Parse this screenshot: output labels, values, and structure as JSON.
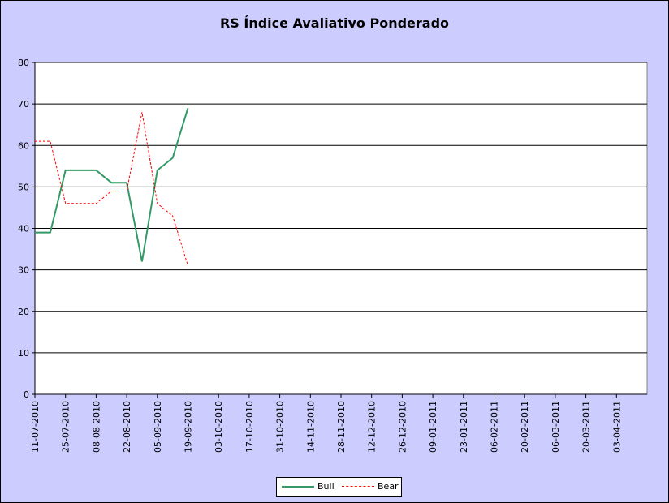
{
  "chart_data": {
    "type": "line",
    "title": "RS Índice Avaliativo Ponderado",
    "xlabel": "",
    "ylabel": "",
    "ylim": [
      0,
      80
    ],
    "y_ticks": [
      "0",
      "10",
      "20",
      "30",
      "40",
      "50",
      "60",
      "70",
      "80"
    ],
    "x_tick_labels": [
      "11-07-2010",
      "25-07-2010",
      "08-08-2010",
      "22-08-2010",
      "05-09-2010",
      "19-09-2010",
      "03-10-2010",
      "17-10-2010",
      "31-10-2010",
      "14-11-2010",
      "28-11-2010",
      "12-12-2010",
      "26-12-2010",
      "09-01-2011",
      "23-01-2011",
      "06-02-2011",
      "20-02-2011",
      "06-03-2011",
      "20-03-2011",
      "03-04-2011"
    ],
    "x": [
      "11-07-2010",
      "18-07-2010",
      "25-07-2010",
      "01-08-2010",
      "08-08-2010",
      "15-08-2010",
      "22-08-2010",
      "29-08-2010",
      "05-09-2010",
      "12-09-2010",
      "19-09-2010"
    ],
    "series": [
      {
        "name": "Bull",
        "values": [
          39,
          39,
          54,
          54,
          54,
          51,
          51,
          32,
          54,
          57,
          69
        ],
        "color": "#339966",
        "style": "solid"
      },
      {
        "name": "Bear",
        "values": [
          61,
          61,
          46,
          46,
          46,
          49,
          49,
          68,
          46,
          43,
          31
        ],
        "color": "#ff0000",
        "style": "dashed"
      }
    ],
    "grid": true,
    "legend_position": "bottom"
  }
}
